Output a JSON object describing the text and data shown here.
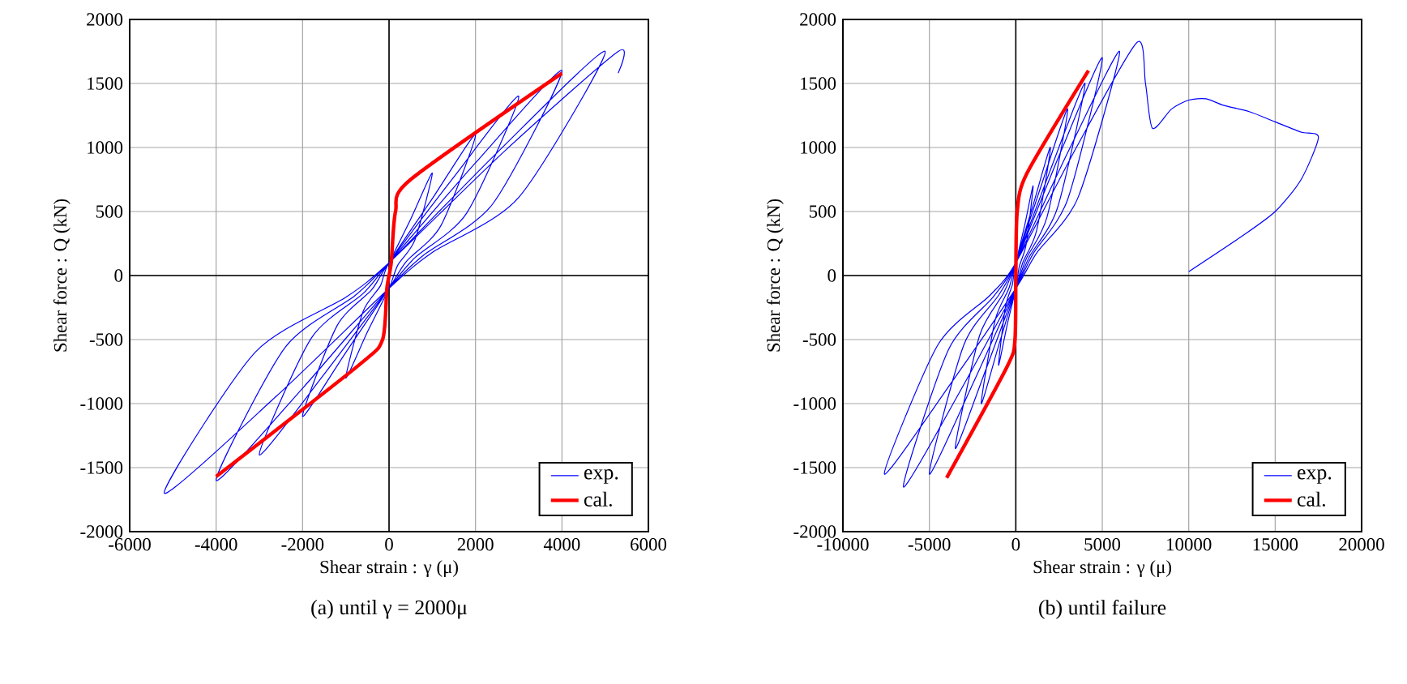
{
  "chart_data": [
    {
      "type": "line",
      "title": "(a) until γ = 2000μ",
      "xlabel": "Shear strain : γ (μ)",
      "ylabel": "Shear force : Q (kN)",
      "xlim": [
        -6000,
        6000
      ],
      "ylim": [
        -2000,
        2000
      ],
      "xticks": [
        -6000,
        -4000,
        -2000,
        0,
        2000,
        4000,
        6000
      ],
      "yticks": [
        -2000,
        -1500,
        -1000,
        -500,
        0,
        500,
        1000,
        1500,
        2000
      ],
      "grid": true,
      "legend": "bottom right",
      "series": [
        {
          "name": "exp.",
          "color": "#0000ff",
          "x": [
            0,
            500,
            1000,
            600,
            200,
            0,
            -500,
            -1000,
            -600,
            -200,
            0,
            1000,
            2000,
            1200,
            400,
            0,
            -1000,
            -2000,
            -1200,
            -400,
            0,
            1500,
            3000,
            1800,
            600,
            0,
            -1500,
            -3000,
            -1800,
            -600,
            0,
            2000,
            4000,
            2400,
            800,
            0,
            -2000,
            -4000,
            -2400,
            -800,
            0,
            2500,
            5000,
            3000,
            1000,
            0,
            -2600,
            -5200,
            -3100,
            -1000,
            0,
            2700,
            5300,
            5300
          ],
          "values": [
            100,
            440,
            800,
            280,
            80,
            -100,
            -440,
            -800,
            -280,
            -80,
            100,
            600,
            1100,
            390,
            110,
            -100,
            -600,
            -1100,
            -390,
            -110,
            100,
            770,
            1400,
            490,
            140,
            -100,
            -770,
            -1400,
            -490,
            -140,
            100,
            880,
            1600,
            560,
            160,
            -100,
            -880,
            -1600,
            -560,
            -160,
            100,
            960,
            1750,
            610,
            180,
            -100,
            -940,
            -1700,
            -600,
            -170,
            100,
            980,
            1750,
            1580
          ]
        },
        {
          "name": "cal.",
          "color": "#ff0000",
          "x": [
            -4000,
            -700,
            -150,
            -50,
            50,
            150,
            500,
            4000
          ],
          "values": [
            -1570,
            -700,
            -500,
            -100,
            100,
            500,
            750,
            1580
          ]
        }
      ]
    },
    {
      "type": "line",
      "title": "(b) until failure",
      "xlabel": "Shear strain : γ (μ)",
      "ylabel": "Shear force : Q (kN)",
      "xlim": [
        -10000,
        20000
      ],
      "ylim": [
        -2000,
        2000
      ],
      "xticks": [
        -10000,
        -5000,
        0,
        5000,
        10000,
        15000,
        20000
      ],
      "yticks": [
        -2000,
        -1500,
        -1000,
        -500,
        0,
        500,
        1000,
        1500,
        2000
      ],
      "grid": true,
      "legend": "bottom right",
      "series": [
        {
          "name": "exp.",
          "color": "#0000ff",
          "x": [
            0,
            500,
            1000,
            600,
            200,
            0,
            -500,
            -1000,
            -600,
            -200,
            0,
            1000,
            2000,
            1200,
            400,
            0,
            -1000,
            -2000,
            -1200,
            -400,
            0,
            1500,
            3000,
            1800,
            600,
            0,
            -1750,
            -3500,
            -2100,
            -700,
            0,
            2000,
            4000,
            2400,
            800,
            0,
            -2500,
            -5000,
            -3000,
            -1000,
            0,
            2500,
            5000,
            3000,
            1000,
            0,
            -3250,
            -6500,
            -3900,
            -1300,
            0,
            3000,
            6000,
            3600,
            1200,
            0,
            -3800,
            -7600,
            -4500,
            -1500,
            0,
            3500,
            7000,
            7500,
            7900,
            9000,
            10000,
            11000,
            12000,
            13500,
            15000,
            16500,
            17500,
            16500,
            15000,
            13000,
            10000
          ],
          "values": [
            100,
            385,
            700,
            245,
            70,
            -100,
            -385,
            -700,
            -245,
            -70,
            100,
            550,
            1000,
            350,
            100,
            -100,
            -550,
            -1000,
            -350,
            -100,
            100,
            715,
            1300,
            455,
            130,
            -100,
            -740,
            -1350,
            -470,
            -135,
            100,
            825,
            1500,
            525,
            150,
            -100,
            -850,
            -1550,
            -540,
            -155,
            100,
            935,
            1700,
            595,
            170,
            -100,
            -910,
            -1650,
            -580,
            -165,
            100,
            960,
            1750,
            610,
            175,
            -100,
            -850,
            -1550,
            -540,
            -155,
            100,
            1000,
            1820,
            1500,
            1150,
            1300,
            1370,
            1380,
            1330,
            1280,
            1200,
            1120,
            1080,
            750,
            500,
            300,
            30
          ]
        },
        {
          "name": "cal.",
          "color": "#ff0000",
          "x": [
            -4000,
            -500,
            -50,
            0,
            80,
            650,
            4200
          ],
          "values": [
            -1580,
            -710,
            -500,
            0,
            500,
            800,
            1600
          ]
        }
      ]
    }
  ]
}
